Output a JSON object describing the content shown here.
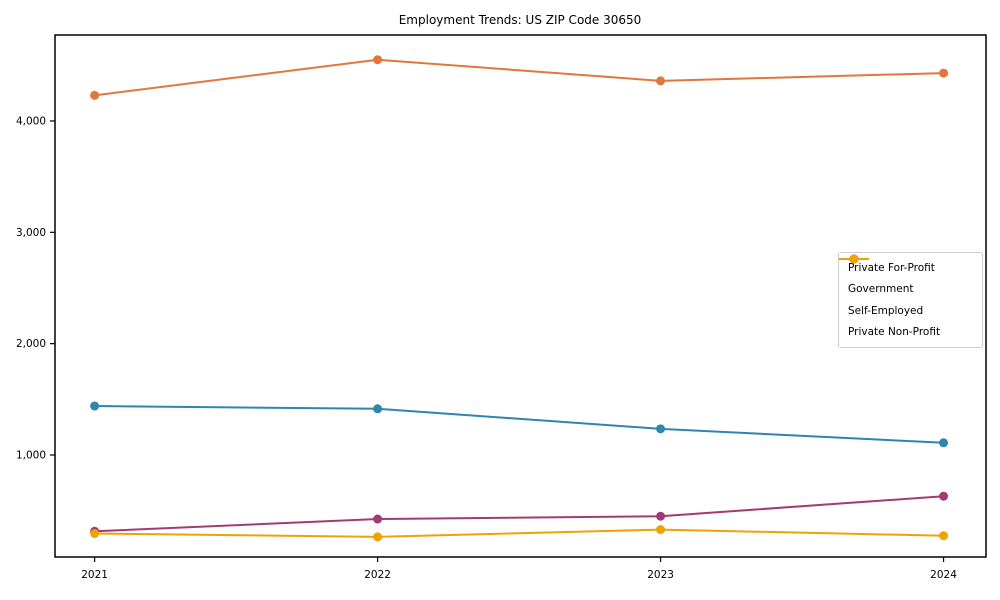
{
  "title": "Employment Trends: US ZIP Code 30650",
  "chart_data": {
    "type": "line",
    "x": [
      2021,
      2022,
      2023,
      2024
    ],
    "x_tick_labels": [
      "2021",
      "2022",
      "2023",
      "2024"
    ],
    "y_tick_values": [
      1000,
      2000,
      3000,
      4000
    ],
    "y_tick_labels": [
      "1,000",
      "2,000",
      "3,000",
      "4,000"
    ],
    "xlim": [
      2020.86,
      2024.15
    ],
    "ylim": [
      84,
      4772
    ],
    "grid": false,
    "frame": true,
    "marker": "circle",
    "legend_position": "center-right",
    "axis_color": "#000000",
    "series": [
      {
        "name": "Private For-Profit",
        "color": "#e2763c",
        "values": [
          4230,
          4550,
          4360,
          4430
        ]
      },
      {
        "name": "Government",
        "color": "#2e86ab",
        "values": [
          1440,
          1415,
          1235,
          1110
        ]
      },
      {
        "name": "Self-Employed",
        "color": "#a23b72",
        "values": [
          315,
          425,
          450,
          630
        ]
      },
      {
        "name": "Private Non-Profit",
        "color": "#f0a202",
        "values": [
          295,
          265,
          330,
          275
        ]
      }
    ]
  }
}
